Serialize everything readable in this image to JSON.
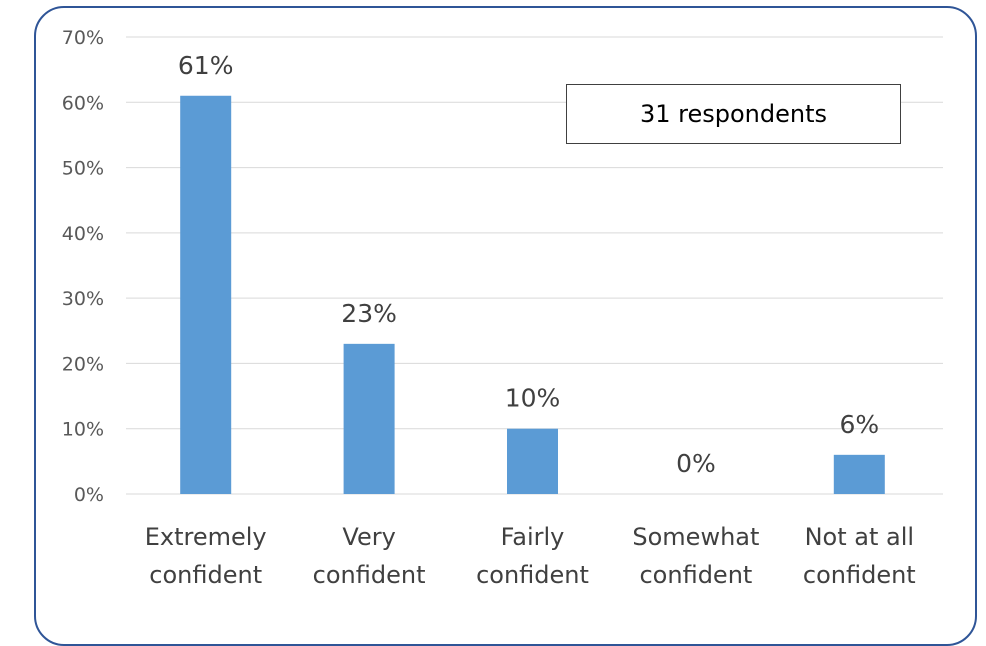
{
  "chart_data": {
    "type": "bar",
    "categories": [
      [
        "Extremely",
        "confident"
      ],
      [
        "Very",
        "confident"
      ],
      [
        "Fairly",
        "confident"
      ],
      [
        "Somewhat",
        "confident"
      ],
      [
        "Not at all",
        "confident"
      ]
    ],
    "values": [
      61,
      23,
      10,
      0,
      6
    ],
    "data_labels": [
      "61%",
      "23%",
      "10%",
      "0%",
      "6%"
    ],
    "y_ticks": [
      "0%",
      "10%",
      "20%",
      "30%",
      "40%",
      "50%",
      "60%",
      "70%"
    ],
    "ylim": [
      0,
      70
    ],
    "grid": true,
    "annotation": "31 respondents",
    "colors": {
      "bar": "#5b9bd5",
      "grid": "#d9d9d9",
      "frame": "#2f5597"
    }
  }
}
